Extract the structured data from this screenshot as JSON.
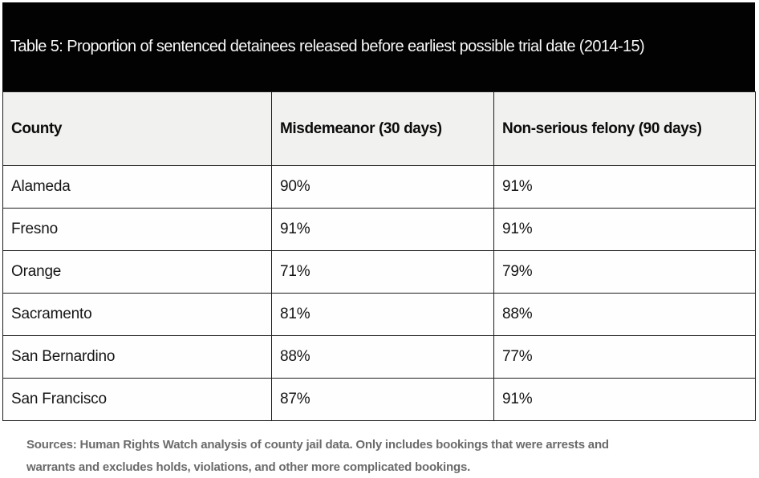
{
  "title": "Table 5: Proportion of sentenced detainees released before earliest possible trial date (2014-15)",
  "chart_data": {
    "type": "table",
    "title": "Table 5: Proportion of sentenced detainees released before earliest possible trial date (2014-15)",
    "columns": [
      "County",
      "Misdemeanor (30 days)",
      "Non-serious felony (90 days)"
    ],
    "rows": [
      [
        "Alameda",
        "90%",
        "91%"
      ],
      [
        "Fresno",
        "91%",
        "91%"
      ],
      [
        "Orange",
        "71%",
        "79%"
      ],
      [
        "Sacramento",
        "81%",
        "88%"
      ],
      [
        "San Bernardino",
        "88%",
        "77%"
      ],
      [
        "San Francisco",
        "87%",
        "91%"
      ]
    ],
    "values_numeric": {
      "misdemeanor_30_days_pct": [
        90,
        91,
        71,
        81,
        88,
        87
      ],
      "non_serious_felony_90_days_pct": [
        91,
        91,
        79,
        88,
        77,
        91
      ]
    },
    "source_note": "Sources: Human Rights Watch analysis of county jail data. Only includes bookings that were arrests and warrants and excludes holds, violations, and other more complicated bookings."
  },
  "footnote": {
    "line1": "Sources: Human Rights Watch analysis of county jail data. Only includes bookings that were arrests and",
    "line2": "warrants and excludes holds, violations, and other more complicated bookings."
  },
  "colors": {
    "title_bar_bg": "#020202",
    "title_text": "#f7f7f7",
    "header_row_bg": "#f1f1ef",
    "row_bg": "#fefefe",
    "border": "#1c1c1c",
    "footnote_text": "#6b6b6b",
    "page_bg": "#ffffff"
  }
}
